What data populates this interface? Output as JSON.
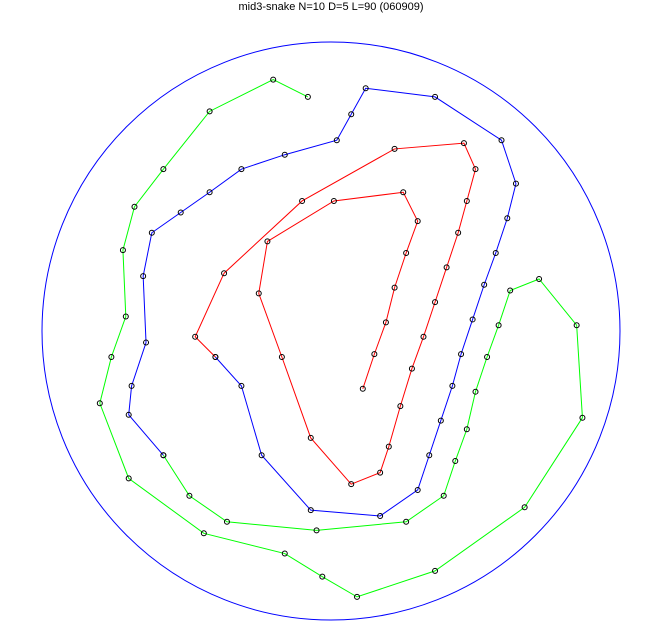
{
  "chart_data": {
    "type": "line",
    "title": "mid3-snake N=10 D=5 L=90 (060909)",
    "boundary": {
      "shape": "circle",
      "center": [
        0,
        0
      ],
      "radius": 100,
      "color": "#0000ff"
    },
    "axes_visible": false,
    "grid": false,
    "marker": "open-circle",
    "marker_color": "#000000",
    "series": [
      {
        "color": "#ff0000",
        "points": [
          [
            11,
            -20
          ],
          [
            15,
            -8
          ],
          [
            19,
            3
          ],
          [
            22,
            15
          ],
          [
            26,
            27
          ],
          [
            30,
            38
          ],
          [
            25,
            48
          ],
          [
            1,
            45
          ],
          [
            -22,
            31
          ],
          [
            -25,
            13
          ],
          [
            -17,
            -9
          ],
          [
            -7,
            -37
          ],
          [
            7,
            -53
          ],
          [
            17,
            -49
          ],
          [
            20,
            -40
          ],
          [
            24,
            -26
          ],
          [
            28,
            -13
          ],
          [
            32,
            -2
          ],
          [
            36,
            10
          ],
          [
            40,
            22
          ],
          [
            44,
            34
          ],
          [
            47,
            45
          ],
          [
            50,
            56
          ],
          [
            46,
            65
          ],
          [
            22,
            63
          ],
          [
            -10,
            45
          ],
          [
            -37,
            20
          ],
          [
            -47,
            -2
          ],
          [
            -40,
            -9
          ]
        ]
      },
      {
        "color": "#0000ff",
        "points": [
          [
            -40,
            -9
          ],
          [
            -31,
            -19
          ],
          [
            -24,
            -43
          ],
          [
            -7,
            -62
          ],
          [
            17,
            -64
          ],
          [
            30,
            -55
          ],
          [
            34,
            -43
          ],
          [
            38,
            -31
          ],
          [
            42,
            -19
          ],
          [
            45,
            -8
          ],
          [
            49,
            4
          ],
          [
            53,
            16
          ],
          [
            57,
            27
          ],
          [
            61,
            39
          ],
          [
            64,
            51
          ],
          [
            59,
            66
          ],
          [
            36,
            81
          ],
          [
            12,
            84
          ],
          [
            7,
            75
          ],
          [
            2,
            66
          ],
          [
            -16,
            61
          ],
          [
            -31,
            56
          ],
          [
            -42,
            48
          ],
          [
            -52,
            41
          ],
          [
            -62,
            34
          ],
          [
            -65,
            19
          ],
          [
            -64,
            -4
          ],
          [
            -69,
            -19
          ],
          [
            -70,
            -29
          ],
          [
            -58,
            -43
          ]
        ]
      },
      {
        "color": "#00ff00",
        "points": [
          [
            -58,
            -43
          ],
          [
            -49,
            -57
          ],
          [
            -36,
            -66
          ],
          [
            -5,
            -69
          ],
          [
            26,
            -66
          ],
          [
            39,
            -57
          ],
          [
            43,
            -45
          ],
          [
            47,
            -34
          ],
          [
            50,
            -21
          ],
          [
            54,
            -9
          ],
          [
            58,
            2
          ],
          [
            62,
            14
          ],
          [
            72,
            18
          ],
          [
            85,
            2
          ],
          [
            87,
            -30
          ],
          [
            67,
            -61
          ],
          [
            36,
            -83
          ],
          [
            9,
            -92
          ],
          [
            -3,
            -85
          ],
          [
            -16,
            -77
          ],
          [
            -44,
            -70
          ],
          [
            -70,
            -51
          ],
          [
            -80,
            -25
          ],
          [
            -76,
            -9
          ],
          [
            -71,
            5
          ],
          [
            -72,
            28
          ],
          [
            -68,
            43
          ],
          [
            -58,
            56
          ],
          [
            -42,
            76
          ],
          [
            -20,
            87
          ],
          [
            -8,
            81
          ]
        ]
      }
    ]
  }
}
